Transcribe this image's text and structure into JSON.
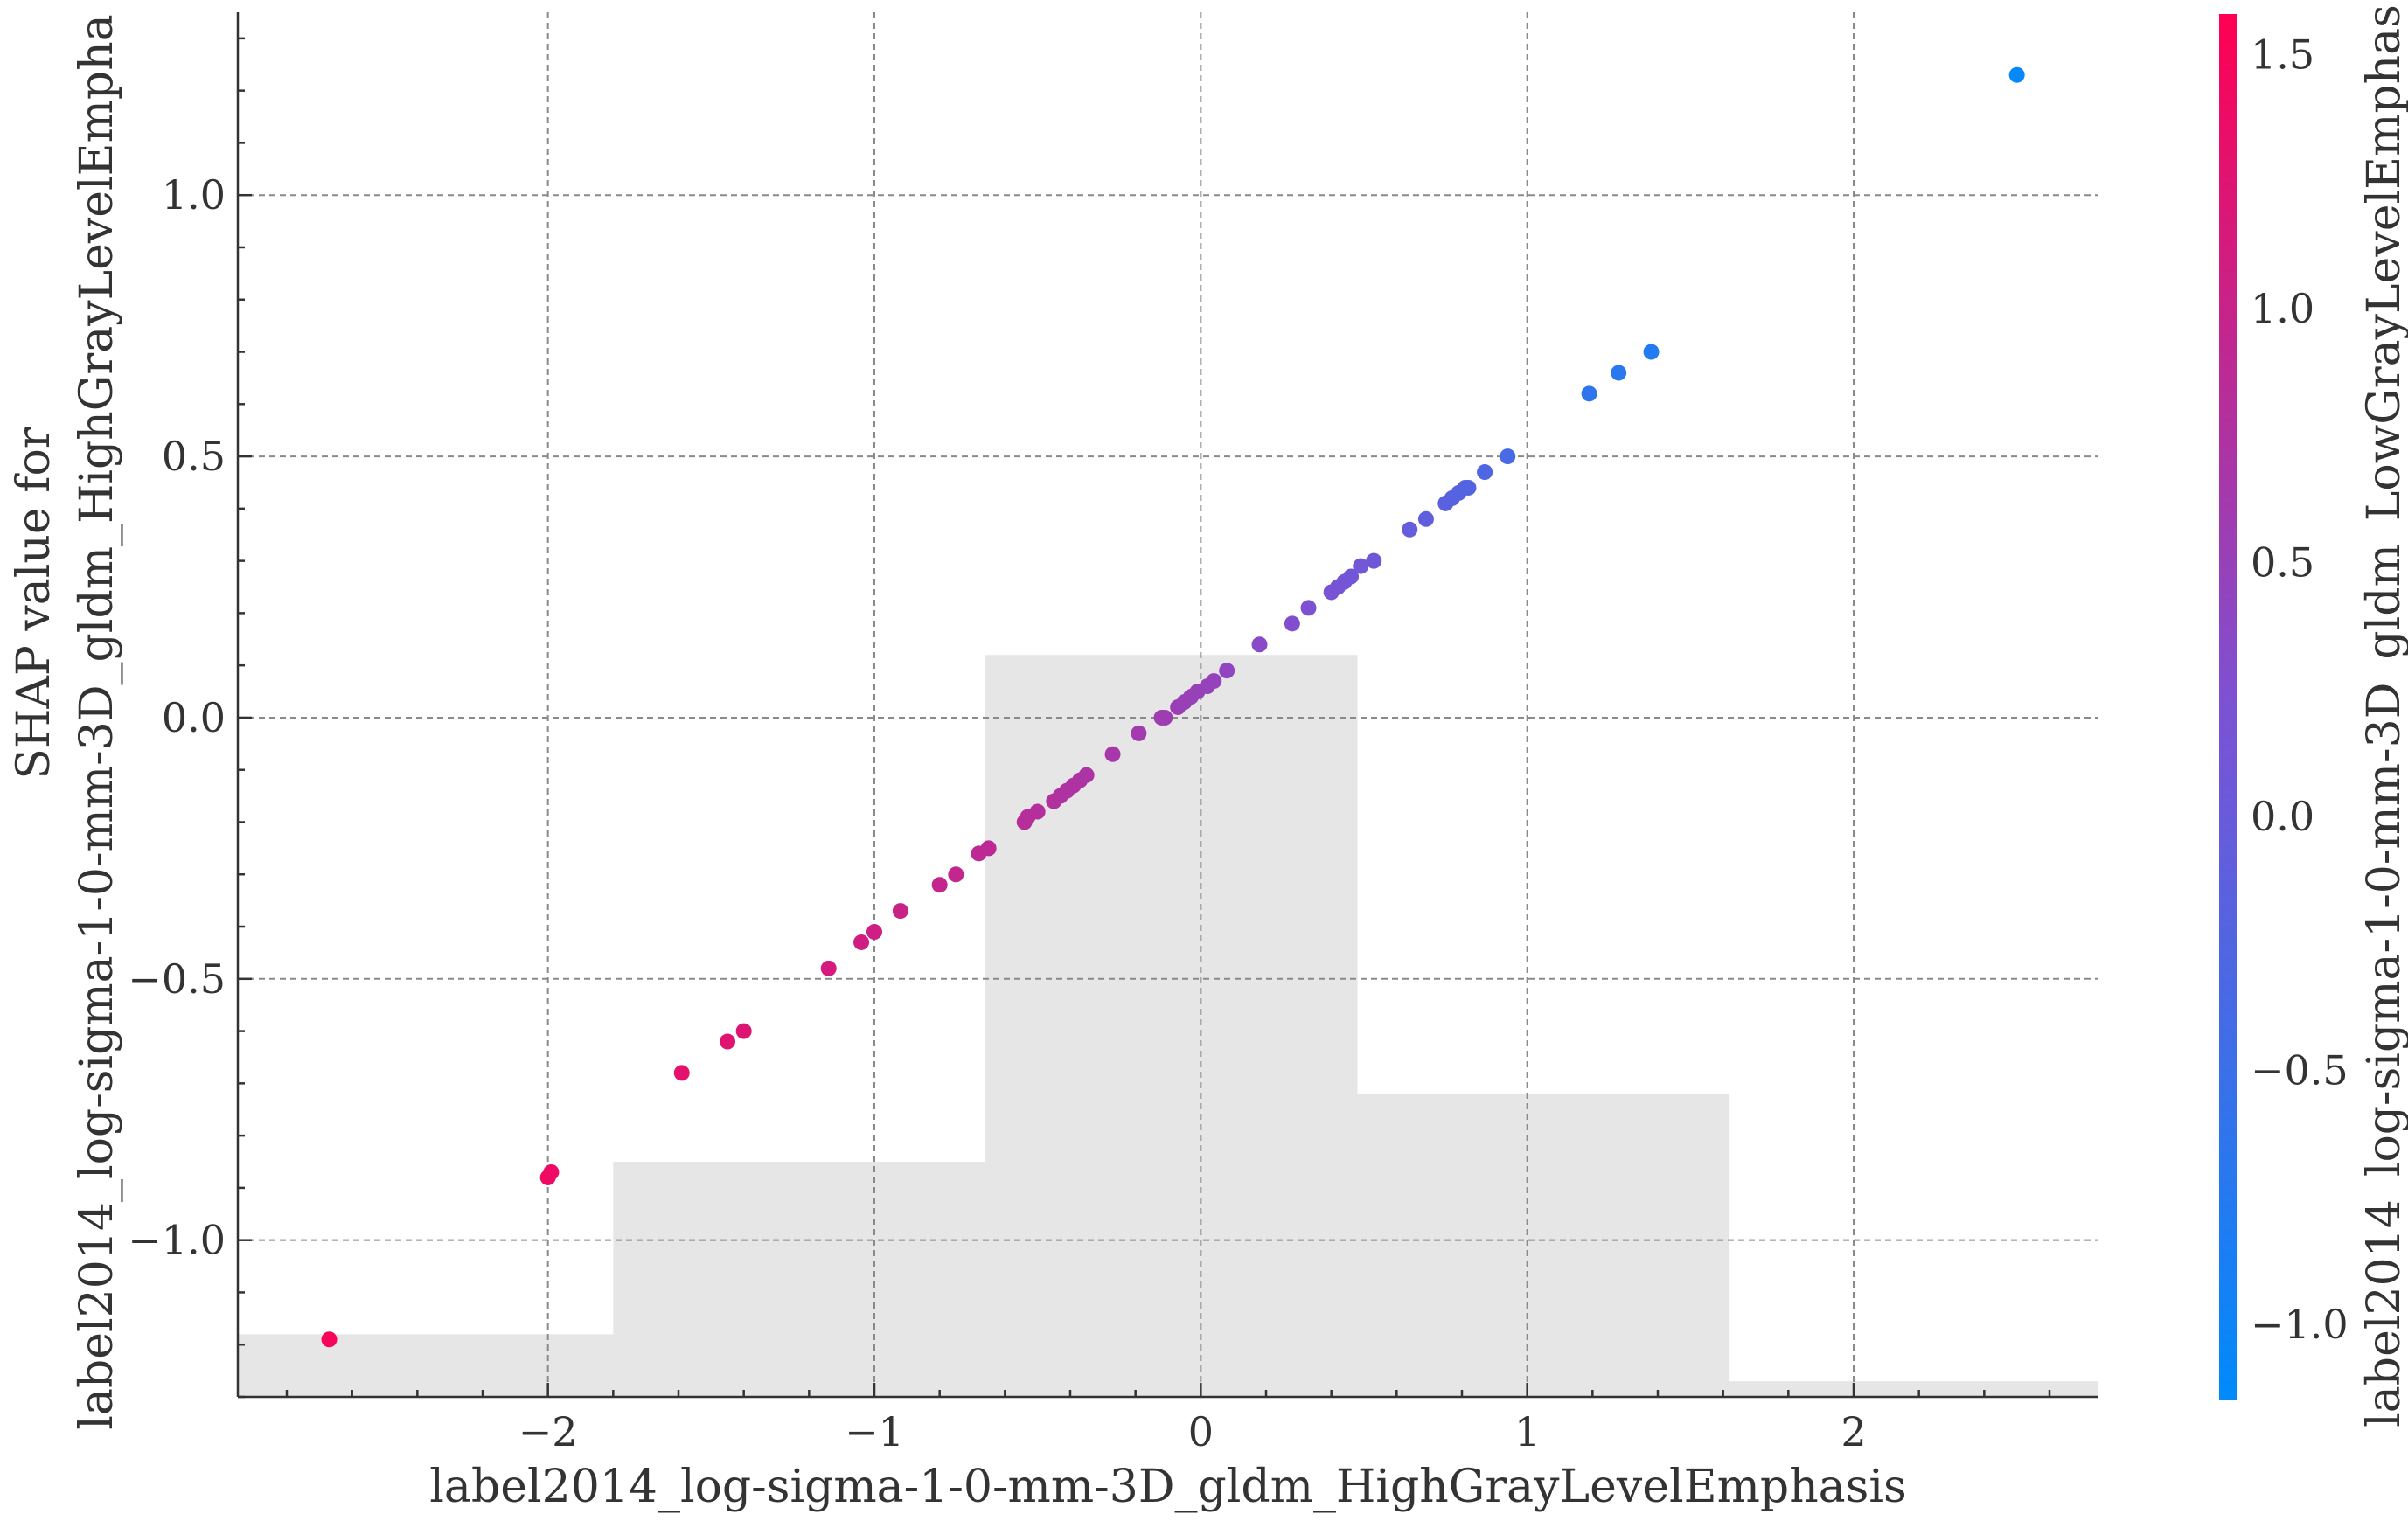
{
  "chart_data": {
    "type": "scatter",
    "title": "",
    "xlabel": "label2014_log-sigma-1-0-mm-3D_gldm_HighGrayLevelEmphasis",
    "ylabel_lines": [
      "SHAP value for",
      "label2014_log-sigma-1-0-mm-3D_gldm_HighGrayLevelEmpha"
    ],
    "colorbar_label": "label2014_log-sigma-1-0-mm-3D_gldm_LowGrayLevelEmphas",
    "xlim": [
      -2.95,
      2.75
    ],
    "ylim": [
      -1.3,
      1.35
    ],
    "x_ticks": [
      -2,
      -1,
      0,
      1,
      2
    ],
    "x_tick_labels": [
      "−2",
      "−1",
      "0",
      "1",
      "2"
    ],
    "y_ticks": [
      -1.0,
      -0.5,
      0.0,
      0.5,
      1.0
    ],
    "y_tick_labels": [
      "−1.0",
      "−0.5",
      "0.0",
      "0.5",
      "1.0"
    ],
    "colorbar_range": [
      -1.15,
      1.58
    ],
    "colorbar_ticks": [
      -1.0,
      -0.5,
      0.0,
      0.5,
      1.0,
      1.5
    ],
    "colorbar_tick_labels": [
      "−1.0",
      "−0.5",
      "0.0",
      "0.5",
      "1.0",
      "1.5"
    ],
    "colorbar_colors": [
      "#008afb",
      "#7c52d4",
      "#ff0052"
    ],
    "grid": true,
    "histogram": {
      "bins": [
        {
          "x0": -2.95,
          "x1": -1.8,
          "top_y": -1.18
        },
        {
          "x0": -1.8,
          "x1": -0.66,
          "top_y": -0.85
        },
        {
          "x0": -0.66,
          "x1": 0.48,
          "top_y": 0.12
        },
        {
          "x0": 0.48,
          "x1": 1.62,
          "top_y": -0.72
        },
        {
          "x0": 1.62,
          "x1": 2.75,
          "top_y": -1.27
        }
      ]
    },
    "points": [
      {
        "x": -2.67,
        "y": -1.19,
        "c": 1.5
      },
      {
        "x": -2.0,
        "y": -0.88,
        "c": 1.4
      },
      {
        "x": -1.99,
        "y": -0.87,
        "c": 1.39
      },
      {
        "x": -1.59,
        "y": -0.68,
        "c": 1.3
      },
      {
        "x": -1.45,
        "y": -0.62,
        "c": 1.26
      },
      {
        "x": -1.4,
        "y": -0.6,
        "c": 1.24
      },
      {
        "x": -1.14,
        "y": -0.48,
        "c": 1.12
      },
      {
        "x": -1.04,
        "y": -0.43,
        "c": 1.08
      },
      {
        "x": -1.0,
        "y": -0.41,
        "c": 1.06
      },
      {
        "x": -0.92,
        "y": -0.37,
        "c": 1.02
      },
      {
        "x": -0.8,
        "y": -0.32,
        "c": 0.96
      },
      {
        "x": -0.75,
        "y": -0.3,
        "c": 0.94
      },
      {
        "x": -0.68,
        "y": -0.26,
        "c": 0.9
      },
      {
        "x": -0.65,
        "y": -0.25,
        "c": 0.89
      },
      {
        "x": -0.54,
        "y": -0.2,
        "c": 0.83
      },
      {
        "x": -0.53,
        "y": -0.19,
        "c": 0.82
      },
      {
        "x": -0.5,
        "y": -0.18,
        "c": 0.8
      },
      {
        "x": -0.45,
        "y": -0.16,
        "c": 0.77
      },
      {
        "x": -0.43,
        "y": -0.15,
        "c": 0.76
      },
      {
        "x": -0.41,
        "y": -0.14,
        "c": 0.75
      },
      {
        "x": -0.39,
        "y": -0.13,
        "c": 0.74
      },
      {
        "x": -0.37,
        "y": -0.12,
        "c": 0.73
      },
      {
        "x": -0.35,
        "y": -0.11,
        "c": 0.72
      },
      {
        "x": -0.27,
        "y": -0.07,
        "c": 0.67
      },
      {
        "x": -0.19,
        "y": -0.03,
        "c": 0.62
      },
      {
        "x": -0.12,
        "y": 0.0,
        "c": 0.58
      },
      {
        "x": -0.11,
        "y": 0.0,
        "c": 0.57
      },
      {
        "x": -0.07,
        "y": 0.02,
        "c": 0.54
      },
      {
        "x": -0.05,
        "y": 0.03,
        "c": 0.52
      },
      {
        "x": -0.03,
        "y": 0.04,
        "c": 0.51
      },
      {
        "x": -0.01,
        "y": 0.05,
        "c": 0.5
      },
      {
        "x": 0.02,
        "y": 0.06,
        "c": 0.48
      },
      {
        "x": 0.04,
        "y": 0.07,
        "c": 0.46
      },
      {
        "x": 0.08,
        "y": 0.09,
        "c": 0.43
      },
      {
        "x": 0.18,
        "y": 0.14,
        "c": 0.36
      },
      {
        "x": 0.28,
        "y": 0.18,
        "c": 0.28
      },
      {
        "x": 0.33,
        "y": 0.21,
        "c": 0.24
      },
      {
        "x": 0.4,
        "y": 0.24,
        "c": 0.18
      },
      {
        "x": 0.42,
        "y": 0.25,
        "c": 0.16
      },
      {
        "x": 0.44,
        "y": 0.26,
        "c": 0.14
      },
      {
        "x": 0.46,
        "y": 0.27,
        "c": 0.12
      },
      {
        "x": 0.49,
        "y": 0.29,
        "c": 0.1
      },
      {
        "x": 0.53,
        "y": 0.3,
        "c": 0.06
      },
      {
        "x": 0.64,
        "y": 0.36,
        "c": -0.05
      },
      {
        "x": 0.69,
        "y": 0.38,
        "c": -0.1
      },
      {
        "x": 0.75,
        "y": 0.41,
        "c": -0.16
      },
      {
        "x": 0.77,
        "y": 0.42,
        "c": -0.18
      },
      {
        "x": 0.79,
        "y": 0.43,
        "c": -0.2
      },
      {
        "x": 0.81,
        "y": 0.44,
        "c": -0.22
      },
      {
        "x": 0.82,
        "y": 0.44,
        "c": -0.23
      },
      {
        "x": 0.87,
        "y": 0.47,
        "c": -0.28
      },
      {
        "x": 0.94,
        "y": 0.5,
        "c": -0.36
      },
      {
        "x": 1.19,
        "y": 0.62,
        "c": -0.62
      },
      {
        "x": 1.28,
        "y": 0.66,
        "c": -0.7
      },
      {
        "x": 1.38,
        "y": 0.7,
        "c": -0.78
      },
      {
        "x": 2.5,
        "y": 1.23,
        "c": -1.1
      }
    ]
  }
}
